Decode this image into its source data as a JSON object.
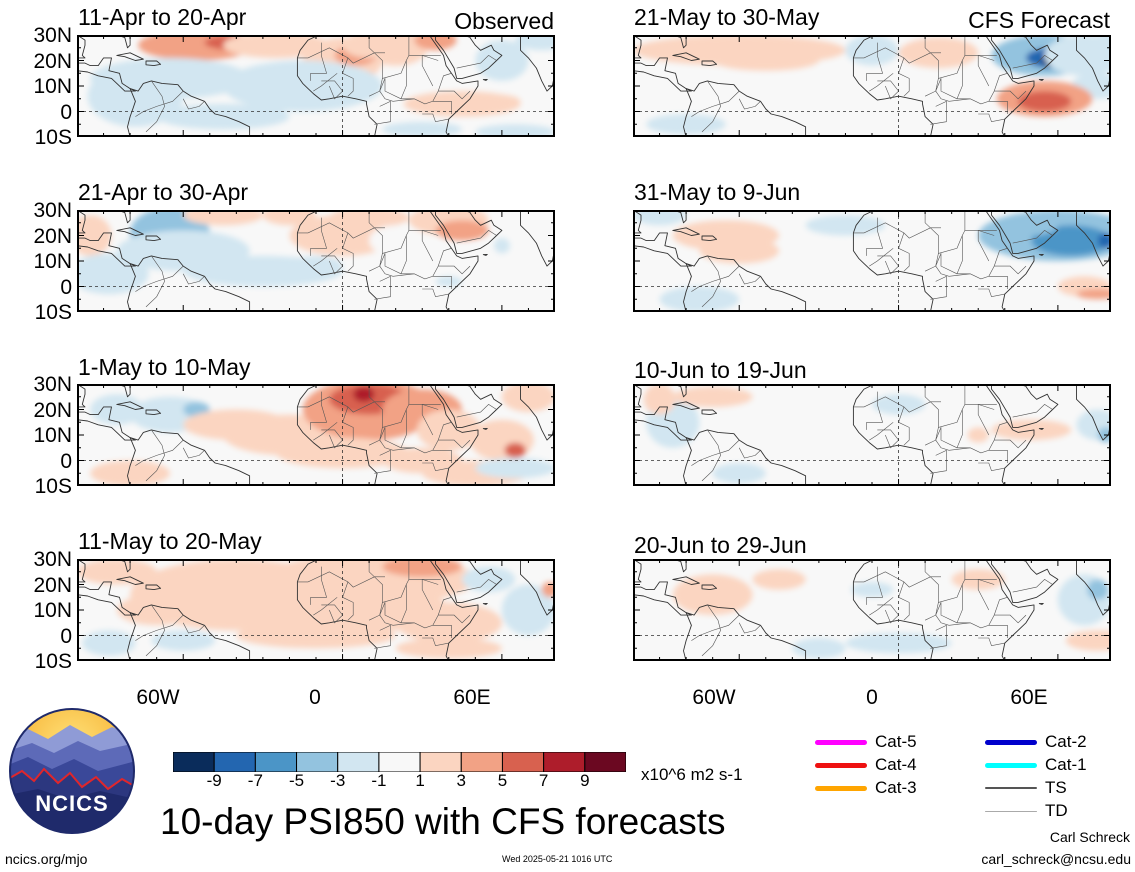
{
  "observed_label": "Observed",
  "forecast_label": "CFS Forecast",
  "observed_panels": [
    {
      "title": "11-Apr to 20-Apr"
    },
    {
      "title": "21-Apr to 30-Apr"
    },
    {
      "title": "1-May to 10-May"
    },
    {
      "title": "11-May to 20-May"
    }
  ],
  "forecast_panels": [
    {
      "title": "21-May to 30-May"
    },
    {
      "title": "31-May to 9-Jun"
    },
    {
      "title": "10-Jun to 19-Jun"
    },
    {
      "title": "20-Jun to 29-Jun"
    }
  ],
  "lat_labels": [
    "30N",
    "20N",
    "10N",
    "0",
    "10S"
  ],
  "lon_labels": [
    "60W",
    "0",
    "60E"
  ],
  "colorbar": {
    "ticks": [
      "-9",
      "-7",
      "-5",
      "-3",
      "-1",
      "1",
      "3",
      "5",
      "7",
      "9"
    ],
    "units": "x10^6 m2 s-1",
    "colors": [
      "#0a2c5b",
      "#2366b0",
      "#4b95c7",
      "#93c3df",
      "#d2e6f1",
      "#f8f8f8",
      "#fbd5c1",
      "#f2a285",
      "#d8614f",
      "#ae1d2b",
      "#6b0821"
    ]
  },
  "storm_legend": [
    {
      "label": "Cat-5",
      "color": "#ff00ff"
    },
    {
      "label": "Cat-4",
      "color": "#ee1111"
    },
    {
      "label": "Cat-3",
      "color": "#ffa500"
    },
    {
      "label": "Cat-2",
      "color": "#0000cc"
    },
    {
      "label": "Cat-1",
      "color": "#00ffff"
    },
    {
      "label": "TS",
      "color": "#555555"
    },
    {
      "label": "TD",
      "color": "#aaaaaa"
    }
  ],
  "logo_text": "NCICS",
  "main_title": "10-day PSI850 with CFS forecasts",
  "footer": {
    "url": "ncics.org/mjo",
    "timestamp": "Wed 2025-05-21 1016 UTC",
    "author": "Carl Schreck",
    "email": "carl_schreck@ncsu.edu"
  }
}
